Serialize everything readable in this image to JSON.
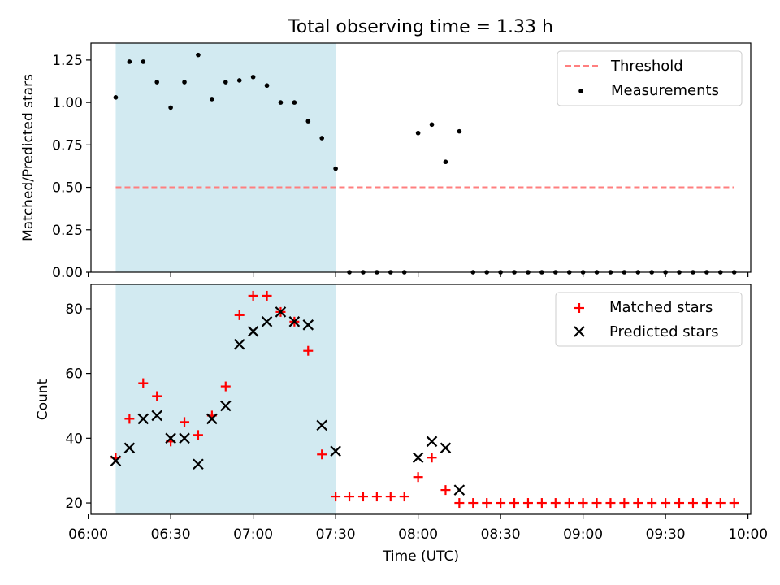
{
  "chart_data": [
    {
      "type": "scatter",
      "title": "Total observing time = 1.33 h",
      "ylabel": "Matched/Predicted stars",
      "xlabel": "",
      "xlim": [
        "06:01",
        "10:01"
      ],
      "ylim": [
        0,
        1.35
      ],
      "yticks": [
        "0.00",
        "0.25",
        "0.50",
        "0.75",
        "1.00",
        "1.25"
      ],
      "shaded_span": [
        "06:10",
        "07:30"
      ],
      "shaded_color": "#add8e6",
      "legend_position": "top-right",
      "series": [
        {
          "name": "Threshold",
          "kind": "line",
          "style": "dashed",
          "color": "#ff7f7f",
          "x": [
            "06:10",
            "09:55"
          ],
          "y": [
            0.5,
            0.5
          ]
        },
        {
          "name": "Measurements",
          "kind": "scatter",
          "marker": "dot",
          "color": "#000000",
          "x": [
            "06:10",
            "06:15",
            "06:20",
            "06:25",
            "06:30",
            "06:35",
            "06:40",
            "06:45",
            "06:50",
            "06:55",
            "07:00",
            "07:05",
            "07:10",
            "07:15",
            "07:20",
            "07:25",
            "07:30",
            "07:35",
            "07:40",
            "07:45",
            "07:50",
            "07:55",
            "08:00",
            "08:05",
            "08:10",
            "08:15",
            "08:20",
            "08:25",
            "08:30",
            "08:35",
            "08:40",
            "08:45",
            "08:50",
            "08:55",
            "09:00",
            "09:05",
            "09:10",
            "09:15",
            "09:20",
            "09:25",
            "09:30",
            "09:35",
            "09:40",
            "09:45",
            "09:50",
            "09:55"
          ],
          "y": [
            1.03,
            1.24,
            1.24,
            1.12,
            0.97,
            1.12,
            1.28,
            1.02,
            1.12,
            1.13,
            1.15,
            1.1,
            1.0,
            1.0,
            0.89,
            0.79,
            0.61,
            0,
            0,
            0,
            0,
            0,
            0.82,
            0.87,
            0.65,
            0.83,
            0,
            0,
            0,
            0,
            0,
            0,
            0,
            0,
            0,
            0,
            0,
            0,
            0,
            0,
            0,
            0,
            0,
            0,
            0,
            0
          ]
        }
      ]
    },
    {
      "type": "scatter",
      "title": "",
      "ylabel": "Count",
      "xlabel": "Time (UTC)",
      "xlim": [
        "06:01",
        "10:01"
      ],
      "ylim": [
        16.5,
        87.5
      ],
      "yticks": [
        "20",
        "40",
        "60",
        "80"
      ],
      "xticks": [
        "06:00",
        "06:30",
        "07:00",
        "07:30",
        "08:00",
        "08:30",
        "09:00",
        "09:30",
        "10:00"
      ],
      "shaded_span": [
        "06:10",
        "07:30"
      ],
      "shaded_color": "#add8e6",
      "legend_position": "top-right",
      "series": [
        {
          "name": "Matched stars",
          "kind": "scatter",
          "marker": "plus",
          "color": "#ff0000",
          "x": [
            "06:10",
            "06:15",
            "06:20",
            "06:25",
            "06:30",
            "06:35",
            "06:40",
            "06:45",
            "06:50",
            "06:55",
            "07:00",
            "07:05",
            "07:10",
            "07:15",
            "07:20",
            "07:25",
            "07:30",
            "07:35",
            "07:40",
            "07:45",
            "07:50",
            "07:55",
            "08:00",
            "08:05",
            "08:10",
            "08:15",
            "08:20",
            "08:25",
            "08:30",
            "08:35",
            "08:40",
            "08:45",
            "08:50",
            "08:55",
            "09:00",
            "09:05",
            "09:10",
            "09:15",
            "09:20",
            "09:25",
            "09:30",
            "09:35",
            "09:40",
            "09:45",
            "09:50",
            "09:55"
          ],
          "y": [
            34,
            46,
            57,
            53,
            39,
            45,
            41,
            47,
            56,
            78,
            84,
            84,
            79,
            76,
            67,
            35,
            22,
            22,
            22,
            22,
            22,
            22,
            28,
            34,
            24,
            20,
            20,
            20,
            20,
            20,
            20,
            20,
            20,
            20,
            20,
            20,
            20,
            20,
            20,
            20,
            20,
            20,
            20,
            20,
            20,
            20
          ]
        },
        {
          "name": "Predicted stars",
          "kind": "scatter",
          "marker": "x",
          "color": "#000000",
          "x": [
            "06:10",
            "06:15",
            "06:20",
            "06:25",
            "06:30",
            "06:35",
            "06:40",
            "06:45",
            "06:50",
            "06:55",
            "07:00",
            "07:05",
            "07:10",
            "07:15",
            "07:20",
            "07:25",
            "07:30",
            "08:00",
            "08:05",
            "08:10",
            "08:15"
          ],
          "y": [
            33,
            37,
            46,
            47,
            40,
            40,
            32,
            46,
            50,
            69,
            73,
            76,
            79,
            76,
            75,
            44,
            36,
            34,
            39,
            37,
            24
          ]
        }
      ]
    }
  ]
}
